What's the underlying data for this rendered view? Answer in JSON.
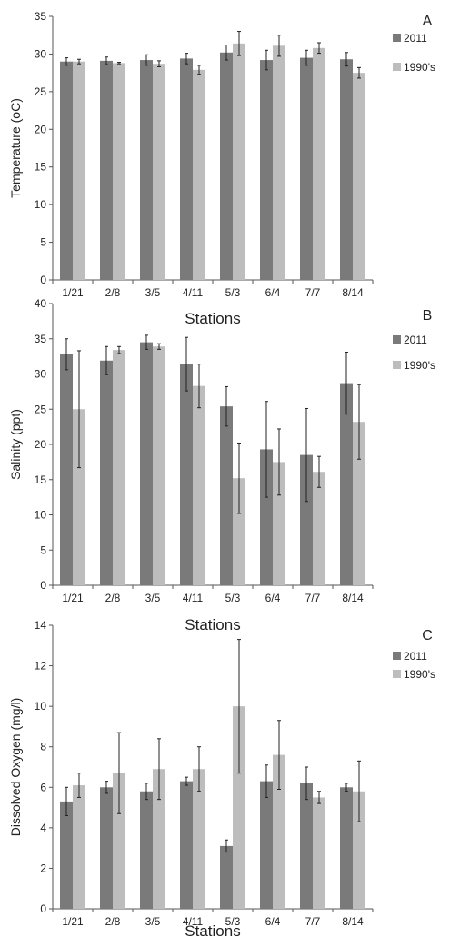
{
  "colors": {
    "s2011": "#7a7a7a",
    "s1990": "#bdbdbd",
    "axis": "#555555",
    "err": "#222222"
  },
  "chart_data": [
    {
      "type": "bar",
      "panel_label": "A",
      "categories": [
        "1/21",
        "2/8",
        "3/5",
        "4/11",
        "5/3",
        "6/4",
        "7/7",
        "8/14"
      ],
      "ylabel": "Temperature (oC)",
      "xlabel": "Stations",
      "ylim": [
        0,
        35
      ],
      "yticks": [
        0,
        5,
        10,
        15,
        20,
        25,
        30,
        35
      ],
      "legend_position": "right",
      "series": [
        {
          "name": "2011",
          "values": [
            29.0,
            29.1,
            29.2,
            29.4,
            30.2,
            29.2,
            29.5,
            29.3
          ],
          "errors": [
            0.5,
            0.5,
            0.7,
            0.7,
            1.0,
            1.3,
            1.0,
            0.9
          ]
        },
        {
          "name": "1990's",
          "values": [
            29.0,
            28.8,
            28.7,
            27.9,
            31.4,
            31.1,
            30.8,
            27.5
          ],
          "errors": [
            0.3,
            0.1,
            0.4,
            0.6,
            1.6,
            1.4,
            0.7,
            0.7
          ]
        }
      ]
    },
    {
      "type": "bar",
      "panel_label": "B",
      "categories": [
        "1/21",
        "2/8",
        "3/5",
        "4/11",
        "5/3",
        "6/4",
        "7/7",
        "8/14"
      ],
      "ylabel": "Salinity (ppt)",
      "xlabel": "Stations",
      "ylim": [
        0,
        40
      ],
      "yticks": [
        0,
        5,
        10,
        15,
        20,
        25,
        30,
        35,
        40
      ],
      "legend_position": "right",
      "series": [
        {
          "name": "2011",
          "values": [
            32.8,
            31.9,
            34.5,
            31.4,
            25.4,
            19.3,
            18.5,
            28.7
          ],
          "errors": [
            2.2,
            2.0,
            1.0,
            3.8,
            2.8,
            6.8,
            6.6,
            4.4
          ]
        },
        {
          "name": "1990's",
          "values": [
            25.0,
            33.4,
            33.9,
            28.3,
            15.2,
            17.5,
            16.1,
            23.2
          ],
          "errors": [
            8.3,
            0.5,
            0.4,
            3.1,
            5.0,
            4.7,
            2.2,
            5.3
          ]
        }
      ]
    },
    {
      "type": "bar",
      "panel_label": "C",
      "categories": [
        "1/21",
        "2/8",
        "3/5",
        "4/11",
        "5/3",
        "6/4",
        "7/7",
        "8/14"
      ],
      "ylabel": "Dissolved Oxygen (mg/l)",
      "xlabel": "Stations",
      "ylim": [
        0,
        14
      ],
      "yticks": [
        0,
        2,
        4,
        6,
        8,
        10,
        12,
        14
      ],
      "legend_position": "top-right",
      "series": [
        {
          "name": "2011",
          "values": [
            5.3,
            6.0,
            5.8,
            6.3,
            3.1,
            6.3,
            6.2,
            6.0
          ],
          "errors": [
            0.7,
            0.3,
            0.4,
            0.2,
            0.3,
            0.8,
            0.8,
            0.2
          ]
        },
        {
          "name": "1990's",
          "values": [
            6.1,
            6.7,
            6.9,
            6.9,
            10.0,
            7.6,
            5.5,
            5.8
          ],
          "errors": [
            0.6,
            2.0,
            1.5,
            1.1,
            3.3,
            1.7,
            0.3,
            1.5
          ]
        }
      ]
    }
  ]
}
